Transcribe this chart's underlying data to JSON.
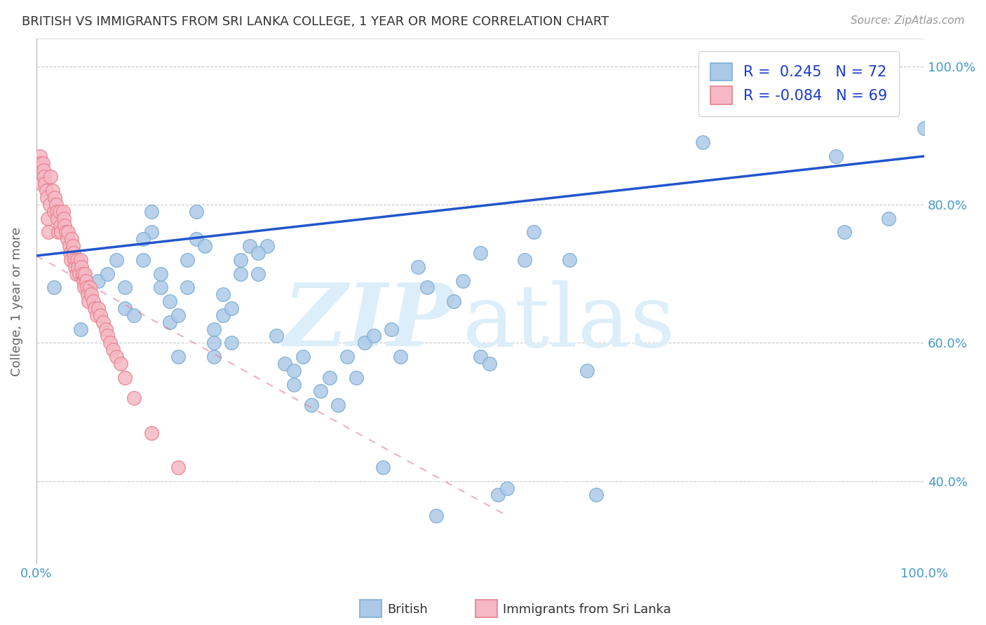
{
  "title": "BRITISH VS IMMIGRANTS FROM SRI LANKA COLLEGE, 1 YEAR OR MORE CORRELATION CHART",
  "source": "Source: ZipAtlas.com",
  "ylabel_label": "College, 1 year or more",
  "legend_british_r": "R =  0.245",
  "legend_british_n": "N = 72",
  "legend_sri_r": "R = -0.084",
  "legend_sri_n": "N = 69",
  "legend_labels": [
    "British",
    "Immigrants from Sri Lanka"
  ],
  "watermark_zip": "ZIP",
  "watermark_atlas": "atlas",
  "british_color": "#adc9e8",
  "british_edge": "#7aaed4",
  "sri_color": "#f5b8c4",
  "sri_edge": "#e8808e",
  "british_line_color": "#2255cc",
  "sri_line_color": "#e08090",
  "grid_color": "#cccccc",
  "tick_color": "#4499cc",
  "british_scatter_x": [
    0.02,
    0.05,
    0.07,
    0.09,
    0.1,
    0.11,
    0.12,
    0.13,
    0.14,
    0.14,
    0.15,
    0.15,
    0.16,
    0.16,
    0.17,
    0.17,
    0.18,
    0.19,
    0.2,
    0.2,
    0.21,
    0.21,
    0.22,
    0.22,
    0.23,
    0.24,
    0.25,
    0.26,
    0.27,
    0.28,
    0.29,
    0.3,
    0.31,
    0.32,
    0.33,
    0.34,
    0.35,
    0.37,
    0.38,
    0.4,
    0.41,
    0.43,
    0.44,
    0.45,
    0.47,
    0.5,
    0.5,
    0.52,
    0.55,
    0.6,
    0.63,
    0.75,
    0.91,
    0.96,
    1.0,
    0.08,
    0.1,
    0.12,
    0.13,
    0.18,
    0.2,
    0.23,
    0.25,
    0.29,
    0.36,
    0.39,
    0.48,
    0.51,
    0.53,
    0.56,
    0.62,
    0.9
  ],
  "british_scatter_y": [
    0.68,
    0.62,
    0.69,
    0.72,
    0.65,
    0.64,
    0.72,
    0.76,
    0.68,
    0.7,
    0.63,
    0.66,
    0.58,
    0.64,
    0.68,
    0.72,
    0.75,
    0.74,
    0.58,
    0.62,
    0.64,
    0.67,
    0.6,
    0.65,
    0.7,
    0.74,
    0.7,
    0.74,
    0.61,
    0.57,
    0.54,
    0.58,
    0.51,
    0.53,
    0.55,
    0.51,
    0.58,
    0.6,
    0.61,
    0.62,
    0.58,
    0.71,
    0.68,
    0.35,
    0.66,
    0.73,
    0.58,
    0.38,
    0.72,
    0.72,
    0.38,
    0.89,
    0.76,
    0.78,
    0.91,
    0.7,
    0.68,
    0.75,
    0.79,
    0.79,
    0.6,
    0.72,
    0.73,
    0.56,
    0.55,
    0.42,
    0.69,
    0.57,
    0.39,
    0.76,
    0.56,
    0.87
  ],
  "sri_scatter_x": [
    0.004,
    0.005,
    0.006,
    0.007,
    0.008,
    0.009,
    0.01,
    0.011,
    0.012,
    0.013,
    0.014,
    0.015,
    0.016,
    0.018,
    0.02,
    0.021,
    0.022,
    0.023,
    0.024,
    0.025,
    0.026,
    0.027,
    0.028,
    0.03,
    0.031,
    0.032,
    0.033,
    0.035,
    0.036,
    0.037,
    0.038,
    0.039,
    0.04,
    0.041,
    0.042,
    0.043,
    0.044,
    0.045,
    0.046,
    0.047,
    0.048,
    0.05,
    0.051,
    0.052,
    0.053,
    0.054,
    0.055,
    0.056,
    0.057,
    0.058,
    0.059,
    0.06,
    0.062,
    0.064,
    0.066,
    0.068,
    0.07,
    0.072,
    0.075,
    0.078,
    0.08,
    0.083,
    0.086,
    0.09,
    0.095,
    0.1,
    0.11,
    0.13,
    0.16
  ],
  "sri_scatter_y": [
    0.87,
    0.86,
    0.83,
    0.86,
    0.85,
    0.84,
    0.83,
    0.82,
    0.81,
    0.78,
    0.76,
    0.8,
    0.84,
    0.82,
    0.79,
    0.81,
    0.8,
    0.79,
    0.78,
    0.76,
    0.79,
    0.77,
    0.76,
    0.79,
    0.78,
    0.77,
    0.76,
    0.75,
    0.76,
    0.74,
    0.73,
    0.72,
    0.75,
    0.74,
    0.73,
    0.72,
    0.71,
    0.7,
    0.72,
    0.71,
    0.7,
    0.72,
    0.71,
    0.7,
    0.69,
    0.68,
    0.7,
    0.69,
    0.68,
    0.67,
    0.66,
    0.68,
    0.67,
    0.66,
    0.65,
    0.64,
    0.65,
    0.64,
    0.63,
    0.62,
    0.61,
    0.6,
    0.59,
    0.58,
    0.57,
    0.55,
    0.52,
    0.47,
    0.42
  ],
  "british_line_x": [
    0.0,
    1.0
  ],
  "british_line_y": [
    0.726,
    0.87
  ],
  "sri_line_x": [
    0.0,
    0.53
  ],
  "sri_line_y": [
    0.726,
    0.35
  ],
  "xlim": [
    0.0,
    1.0
  ],
  "ylim": [
    0.28,
    1.04
  ],
  "yticks": [
    0.4,
    0.6,
    0.8,
    1.0
  ],
  "ytick_labels": [
    "40.0%",
    "60.0%",
    "80.0%",
    "100.0%"
  ],
  "xticks": [
    0.0,
    0.1,
    0.2,
    0.3,
    0.4,
    0.5,
    0.6,
    0.7,
    0.8,
    0.9,
    1.0
  ],
  "xtick_labels_show": [
    "0.0%",
    "",
    "",
    "",
    "",
    "",
    "",
    "",
    "",
    "",
    "100.0%"
  ]
}
